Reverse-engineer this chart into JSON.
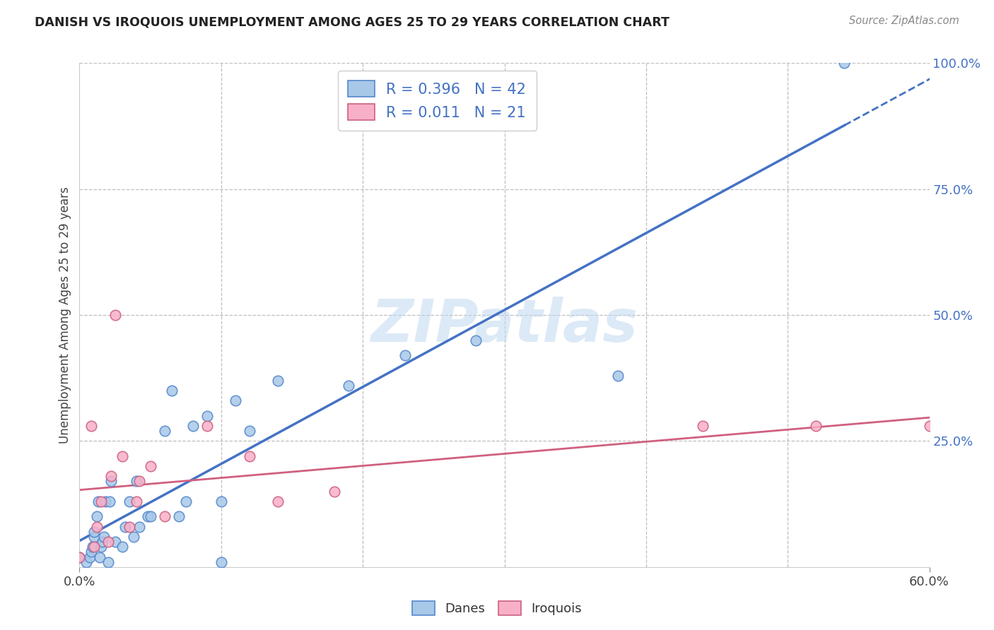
{
  "title": "DANISH VS IROQUOIS UNEMPLOYMENT AMONG AGES 25 TO 29 YEARS CORRELATION CHART",
  "source": "Source: ZipAtlas.com",
  "ylabel": "Unemployment Among Ages 25 to 29 years",
  "x_min": 0.0,
  "x_max": 60.0,
  "y_min": 0.0,
  "y_max": 100.0,
  "y_ticks": [
    25.0,
    50.0,
    75.0,
    100.0
  ],
  "y_tick_labels": [
    "25.0%",
    "50.0%",
    "75.0%",
    "100.0%"
  ],
  "danes_color": "#a8c8e8",
  "danes_edge_color": "#5588cc",
  "iroquois_color": "#f8b0c8",
  "iroquois_edge_color": "#cc6080",
  "danes_line_color": "#4472c4",
  "iroquois_line_color": "#d06080",
  "danes_R": 0.396,
  "danes_N": 42,
  "iroquois_R": 0.011,
  "iroquois_N": 21,
  "legend_color": "#4472c4",
  "background_color": "#ffffff",
  "grid_color": "#b8b8b8",
  "watermark_color": "#c0d8f0",
  "danes_x": [
    0.0,
    0.5,
    0.7,
    0.8,
    0.9,
    1.0,
    1.0,
    1.2,
    1.3,
    1.4,
    1.5,
    1.6,
    1.7,
    1.8,
    2.0,
    2.1,
    2.2,
    2.5,
    3.0,
    3.2,
    3.5,
    3.8,
    4.0,
    4.2,
    4.8,
    5.0,
    6.0,
    6.5,
    7.0,
    7.5,
    8.0,
    9.0,
    10.0,
    10.0,
    11.0,
    12.0,
    14.0,
    19.0,
    23.0,
    28.0,
    38.0,
    54.0
  ],
  "danes_y": [
    2.0,
    1.0,
    2.0,
    3.0,
    4.0,
    6.0,
    7.0,
    10.0,
    13.0,
    2.0,
    4.0,
    5.0,
    6.0,
    13.0,
    1.0,
    13.0,
    17.0,
    5.0,
    4.0,
    8.0,
    13.0,
    6.0,
    17.0,
    8.0,
    10.0,
    10.0,
    27.0,
    35.0,
    10.0,
    13.0,
    28.0,
    30.0,
    13.0,
    1.0,
    33.0,
    27.0,
    37.0,
    36.0,
    42.0,
    45.0,
    38.0,
    100.0
  ],
  "iroquois_x": [
    0.0,
    0.8,
    1.0,
    1.2,
    1.5,
    2.0,
    2.2,
    2.5,
    3.0,
    3.5,
    4.0,
    4.2,
    5.0,
    6.0,
    9.0,
    12.0,
    14.0,
    18.0,
    44.0,
    52.0,
    60.0
  ],
  "iroquois_y": [
    2.0,
    28.0,
    4.0,
    8.0,
    13.0,
    5.0,
    18.0,
    50.0,
    22.0,
    8.0,
    13.0,
    17.0,
    20.0,
    10.0,
    28.0,
    22.0,
    13.0,
    15.0,
    28.0,
    28.0,
    28.0
  ]
}
